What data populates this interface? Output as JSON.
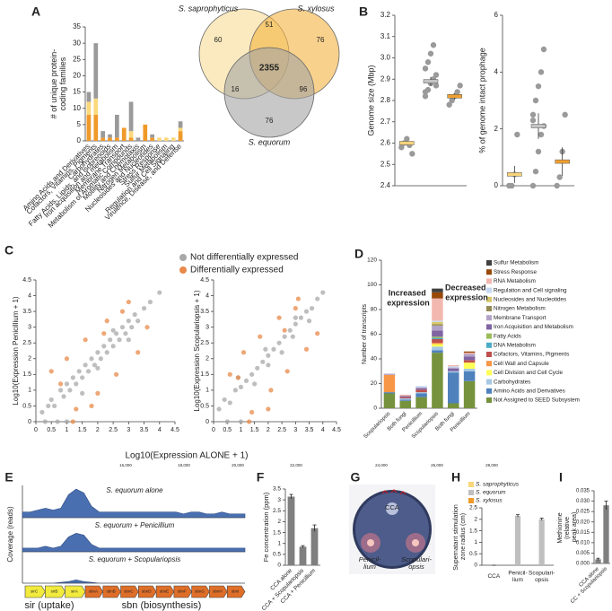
{
  "chart_data": [
    {
      "panel": "A",
      "type": "bar",
      "stacked": true,
      "ylabel": "# of unique protein-coding families",
      "categories": [
        "Amino Acids and Derivatives",
        "Cofactors, Vitamins, Pigments",
        "Carbohydrates",
        "Fatty Acids, Lipids, and Isoprenoids",
        "Iron acquisition and metabolism",
        "Membrane Transport",
        "Metabolism of Aromatic Compounds",
        "Motility and Chemotaxis",
        "Nitrogen Metabolism",
        "Nucleosides and Nucleotides",
        "Stress Response",
        "Sulfur Metabolism",
        "Regulation and Cell Signaling",
        "Virulence, Disease, and Defense"
      ],
      "series": [
        {
          "color": "#ef9a2a",
          "values": [
            8,
            8,
            1,
            1,
            1,
            4,
            1,
            0,
            5,
            1,
            0,
            0,
            0,
            3
          ]
        },
        {
          "color": "#fbd87c",
          "values": [
            4,
            5,
            0,
            0,
            0,
            0,
            2,
            0,
            0,
            0,
            1,
            1,
            1,
            1
          ]
        },
        {
          "color": "#9a9a9a",
          "values": [
            3,
            17,
            2,
            1,
            7,
            0,
            9,
            1,
            0,
            1,
            0,
            0,
            0,
            2
          ]
        }
      ],
      "ylim": [
        0,
        35
      ],
      "yticks": [
        0,
        5,
        10,
        15,
        20,
        25,
        30,
        35
      ]
    },
    {
      "type": "venn",
      "sets": [
        {
          "name": "S. saprophyticus",
          "color": "#f8dc94"
        },
        {
          "name": "S. xylosus",
          "color": "#f3b241"
        },
        {
          "name": "S. equorum",
          "color": "#a3a3a3"
        }
      ],
      "regions": [
        60,
        51,
        76,
        2355,
        16,
        96,
        76
      ]
    },
    {
      "panel": "B",
      "type": "dot",
      "ylabel": "Genome size (Mbp)",
      "series": [
        {
          "color": "#f6d27a",
          "values": [
            2.58,
            2.6,
            2.62,
            2.59,
            2.55
          ],
          "mean": 2.6,
          "error": 0.01
        },
        {
          "color": "#c4c4c4",
          "values": [
            2.82,
            2.85,
            2.88,
            2.9,
            2.92,
            2.95,
            2.98,
            3.02,
            3.06,
            2.87,
            2.84
          ],
          "mean": 2.89,
          "error": 0.02
        },
        {
          "color": "#f0a030",
          "values": [
            2.78,
            2.8,
            2.82,
            2.84,
            2.87
          ],
          "mean": 2.82,
          "error": 0.015
        }
      ],
      "ylim": [
        2.4,
        3.2
      ],
      "yticks": [
        2.4,
        2.5,
        2.6,
        2.7,
        2.8,
        2.9,
        {
          "value": 3,
          "label": "3.0"
        },
        3.1,
        3.2
      ]
    },
    {
      "type": "dot",
      "ylabel": "% of genome intact prophage",
      "series": [
        {
          "color": "#f6d27a",
          "values": [
            0,
            0,
            0.4,
            1.8
          ],
          "mean": 0.4,
          "error": 0.3
        },
        {
          "color": "#c4c4c4",
          "values": [
            0,
            0.5,
            1.2,
            1.8,
            2.1,
            2.5,
            3,
            3.5,
            4,
            4.8,
            2.3
          ],
          "mean": 2.1,
          "error": 0.45
        },
        {
          "color": "#f0a030",
          "values": [
            0,
            0.3,
            1.2,
            2.5
          ],
          "mean": 0.85,
          "error": 0.5
        }
      ],
      "ylim": [
        0,
        6
      ],
      "yticks": [
        0,
        2,
        4,
        6
      ]
    },
    {
      "panel": "C",
      "type": "scatter",
      "ylabel": "Log10(Expression Penicillium + 1)",
      "xlabel": "Log10(Expression ALONE + 1)",
      "series": [
        {
          "name": "Not differentially expressed",
          "color": "#a8a8a8",
          "x": [
            0.2,
            0.4,
            0.5,
            0.6,
            0.8,
            0.9,
            1.0,
            1.1,
            1.2,
            1.3,
            1.4,
            1.5,
            1.6,
            1.7,
            1.8,
            1.9,
            2.0,
            2.1,
            2.2,
            2.3,
            2.4,
            2.5,
            2.6,
            2.7,
            2.8,
            2.9,
            3.0,
            3.1,
            3.2,
            3.3,
            3.5,
            3.7,
            4.0,
            0.3,
            0.7,
            1.0,
            1.5,
            2.0,
            2.5,
            3.0
          ],
          "y": [
            0.3,
            0.5,
            0.7,
            0.5,
            1.0,
            0.8,
            1.2,
            1.0,
            1.4,
            1.2,
            1.6,
            1.4,
            1.8,
            1.6,
            2.0,
            1.8,
            2.2,
            2.0,
            2.4,
            2.2,
            2.6,
            2.4,
            2.8,
            2.6,
            3.0,
            2.8,
            3.2,
            3.0,
            3.4,
            3.2,
            3.6,
            3.8,
            4.1,
            0,
            0,
            0,
            0.9,
            1.7,
            2.9,
            2.6
          ]
        },
        {
          "name": "Differentially expressed",
          "color": "#e8894a",
          "x": [
            0.5,
            1.0,
            1.3,
            1.6,
            2.0,
            2.3,
            2.6,
            3.0,
            3.3,
            1.2,
            1.8,
            2.2,
            2.8,
            0.8,
            3.6
          ],
          "y": [
            1.6,
            2.0,
            0.4,
            2.6,
            0.9,
            3.2,
            1.5,
            3.8,
            2.2,
            0,
            0.5,
            2.8,
            3.5,
            1.2,
            3.0
          ]
        }
      ],
      "xlim": [
        0,
        4.5
      ],
      "xticks": [
        0,
        0.5,
        1,
        1.5,
        2,
        2.5,
        3,
        3.5,
        4,
        4.5
      ],
      "ylim": [
        0,
        4.5
      ],
      "yticks": [
        0,
        0.5,
        1,
        1.5,
        2,
        2.5,
        3,
        3.5,
        4,
        4.5
      ]
    },
    {
      "type": "scatter",
      "ylabel": "Log10(Expression Scopulariopsis + 1)",
      "series": [
        {
          "color": "#a8a8a8",
          "x": [
            0.2,
            0.4,
            0.6,
            0.8,
            1.0,
            1.2,
            1.4,
            1.6,
            1.8,
            2.0,
            2.2,
            2.4,
            2.6,
            2.8,
            3.0,
            3.2,
            3.4,
            3.6,
            3.8,
            4.0,
            0.5,
            1.0,
            1.5,
            2.0,
            2.5,
            3.0,
            3.5,
            0.9,
            1.9,
            2.9
          ],
          "y": [
            0.4,
            0.7,
            0.6,
            1.0,
            1.1,
            1.3,
            1.5,
            1.7,
            1.9,
            2.1,
            2.3,
            2.5,
            2.7,
            2.9,
            3.1,
            3.3,
            3.5,
            3.6,
            3.9,
            4.1,
            0,
            0,
            1.2,
            1.8,
            2.2,
            3.3,
            3.2,
            1.4,
            2.3,
            2.7
          ]
        },
        {
          "color": "#e8894a",
          "x": [
            0.6,
            1.1,
            1.4,
            1.7,
            2.1,
            2.4,
            2.7,
            3.1,
            3.4,
            1.3,
            2.0,
            2.6,
            3.0,
            0.9,
            3.8
          ],
          "y": [
            1.5,
            2.2,
            0.3,
            2.7,
            1.0,
            3.3,
            1.6,
            3.9,
            2.3,
            0,
            0.4,
            2.9,
            3.6,
            1.4,
            2.8
          ]
        }
      ],
      "xlim": [
        0,
        4.5
      ],
      "xticks": [
        0,
        0.5,
        1,
        1.5,
        2,
        2.5,
        3,
        3.5,
        4,
        4.5
      ],
      "ylim": [
        0,
        4.5
      ],
      "yticks": [
        0,
        0.5,
        1,
        1.5,
        2,
        2.5,
        3,
        3.5,
        4,
        4.5
      ]
    },
    {
      "panel": "D",
      "type": "bar",
      "stacked": true,
      "ylabel": "Number of transcripts",
      "annotations": [
        {
          "text": "Increased expression",
          "color": "#4e7a2e"
        },
        {
          "text": "Decreased expression",
          "color": "#c0392b"
        }
      ],
      "categories": [
        "Scopulariopsis",
        "Both fungi",
        "Penicillium",
        "Scopulariopsis",
        "Both fungi",
        "Penicillium"
      ],
      "series": [
        {
          "name": "Not Assigned to SEED Subsystem",
          "color": "#76923c",
          "values": [
            12,
            6,
            9,
            45,
            4,
            22
          ]
        },
        {
          "name": "Amino Acids and Derivatives",
          "color": "#4f81bd",
          "values": [
            1,
            1,
            3,
            2,
            25,
            8
          ]
        },
        {
          "name": "Carbohydrates",
          "color": "#a5c8e4",
          "values": [
            0,
            1,
            1,
            3,
            1,
            2
          ]
        },
        {
          "name": "Cell Division and Cell Cycle",
          "color": "#ffff55",
          "values": [
            0,
            0,
            0,
            2,
            0,
            5
          ]
        },
        {
          "name": "Cell Wall and Capsule",
          "color": "#f79646",
          "values": [
            14,
            0,
            0,
            1,
            0,
            0
          ]
        },
        {
          "name": "Cofactors, Vitamins, Pigments",
          "color": "#c0504d",
          "values": [
            0,
            1,
            2,
            3,
            0,
            2
          ]
        },
        {
          "name": "DNA Metabolism",
          "color": "#4bacc6",
          "values": [
            0,
            0,
            0,
            1,
            0,
            0
          ]
        },
        {
          "name": "Fatty Acids",
          "color": "#9bbb59",
          "values": [
            0,
            0,
            0,
            1,
            0,
            0
          ]
        },
        {
          "name": "Iron Acquisition and Metabolism",
          "color": "#8064a2",
          "values": [
            0,
            1,
            1,
            5,
            2,
            3
          ]
        },
        {
          "name": "Membrane Transport",
          "color": "#b3a2c7",
          "values": [
            1,
            0,
            1,
            4,
            1,
            2
          ]
        },
        {
          "name": "Nitrogen Metabolism",
          "color": "#948a54",
          "values": [
            0,
            0,
            0,
            1,
            0,
            0
          ]
        },
        {
          "name": "Nucleosides and Nucleotides",
          "color": "#d8c86a",
          "values": [
            0,
            0,
            0,
            2,
            0,
            0
          ]
        },
        {
          "name": "Regulation and Cell signaling",
          "color": "#c6d9f1",
          "values": [
            0,
            0,
            1,
            1,
            1,
            0
          ]
        },
        {
          "name": "RNA Metabolism",
          "color": "#f2b8b0",
          "values": [
            0,
            1,
            0,
            18,
            1,
            1
          ]
        },
        {
          "name": "Stress Response",
          "color": "#984807",
          "values": [
            0,
            0,
            0,
            5,
            0,
            1
          ]
        },
        {
          "name": "Sulfur Metabolism",
          "color": "#404040",
          "values": [
            0,
            0,
            0,
            3,
            0,
            0
          ]
        }
      ],
      "ylim": [
        0,
        120
      ],
      "yticks": [
        0,
        20,
        40,
        60,
        80,
        100,
        120
      ]
    },
    {
      "panel": "E",
      "type": "coverage",
      "ylabel": "Coverage (reads)",
      "color": "#4a6fb0",
      "position_labels": [
        "16,000",
        "18,000",
        "20,000",
        "22,000",
        "24,000",
        "26,000",
        "28,000"
      ],
      "ylim": [
        0,
        16
      ],
      "tracks": [
        {
          "name": "S. equorum alone",
          "values": [
            3,
            3,
            4,
            5,
            4,
            5,
            12,
            15,
            13,
            6,
            3,
            3,
            3,
            3,
            3,
            3,
            3,
            3,
            3,
            3,
            3,
            2,
            3,
            3,
            2,
            2,
            3,
            2,
            2,
            2
          ]
        },
        {
          "name": "S. equorum + Penicillium",
          "values": [
            2,
            2,
            2,
            3,
            2,
            3,
            8,
            10,
            9,
            4,
            2,
            2,
            2,
            2,
            2,
            2,
            2,
            2,
            2,
            2,
            2,
            2,
            2,
            2,
            2,
            2,
            2,
            2,
            2,
            2
          ]
        },
        {
          "name": "S. equorum + Scopulariopsis",
          "values": [
            0,
            0,
            0,
            0,
            0,
            0.5,
            1,
            2,
            1,
            0.5,
            0,
            0,
            0,
            0,
            0,
            0,
            0,
            0,
            0,
            0,
            0,
            0,
            0,
            0,
            0,
            0,
            0,
            0,
            0,
            0
          ]
        }
      ],
      "gene_groups": [
        {
          "label": "sir (uptake)",
          "color": "#f2ea3c",
          "genes": [
            "sirC",
            "sirB",
            "sirA"
          ]
        },
        {
          "label": "sbn (biosynthesis)",
          "color": "#df6e28",
          "genes": [
            "sbnA",
            "sbnB",
            "sbnC",
            "sbnD",
            "sbnE",
            "sbnF",
            "sbnG",
            "sbnH",
            "sbnI"
          ]
        }
      ]
    },
    {
      "panel": "F",
      "type": "bar",
      "ylabel": "Fe concentration (ppm)",
      "color": "#7f7f7f",
      "categories": [
        "CCA alone",
        "CCA + Scopulariopsis",
        "CCA + Penicillium"
      ],
      "values": [
        3.15,
        0.85,
        1.7
      ],
      "errors": [
        0.1,
        0.05,
        0.15
      ],
      "ylim": [
        0,
        3.5
      ],
      "yticks": [
        0,
        0.5,
        1,
        1.5,
        2,
        2.5,
        3,
        3.5
      ]
    },
    {
      "panel": "G",
      "type": "plate",
      "labels": [
        "CCA",
        "Penicil-lium",
        "Scopulari-opsis"
      ]
    },
    {
      "panel": "H",
      "type": "bar",
      "ylabel": "Supernatant stimulation zone radius (cm)",
      "categories": [
        "CCA",
        "Penicil-lium",
        "Scopulari-opsis"
      ],
      "series": [
        {
          "name": "S. saprophyticus",
          "color": "#f8d77a",
          "values": [
            0,
            0,
            0
          ]
        },
        {
          "name": "S. equorum",
          "color": "#bfbfbf",
          "values": [
            0,
            2.15,
            2.0
          ],
          "errors": [
            0,
            0.05,
            0.05
          ]
        },
        {
          "name": "S. xylosus",
          "color": "#ef9a2a",
          "values": [
            0,
            0,
            0
          ]
        }
      ],
      "ylim": [
        0,
        2.5
      ],
      "yticks": [
        0,
        0.5,
        1,
        1.5,
        2,
        2.5
      ]
    },
    {
      "panel": "I",
      "type": "bar",
      "ylabel": "Methionine (relative peak area)",
      "color": "#7f7f7f",
      "categories": [
        "CCA alone",
        "CC + Scopulariopsis"
      ],
      "values": [
        0.002,
        0.028
      ],
      "errors": [
        0.0005,
        0.002
      ],
      "ylim": [
        0,
        0.035
      ],
      "yticks": [
        {
          "value": 0,
          "label": "0.000"
        },
        {
          "value": 0.005,
          "label": "0.005"
        },
        {
          "value": 0.01,
          "label": "0.010"
        },
        {
          "value": 0.015,
          "label": "0.015"
        },
        {
          "value": 0.02,
          "label": "0.020"
        },
        {
          "value": 0.025,
          "label": "0.025"
        },
        {
          "value": 0.03,
          "label": "0.030"
        },
        {
          "value": 0.035,
          "label": "0.035"
        }
      ]
    }
  ]
}
